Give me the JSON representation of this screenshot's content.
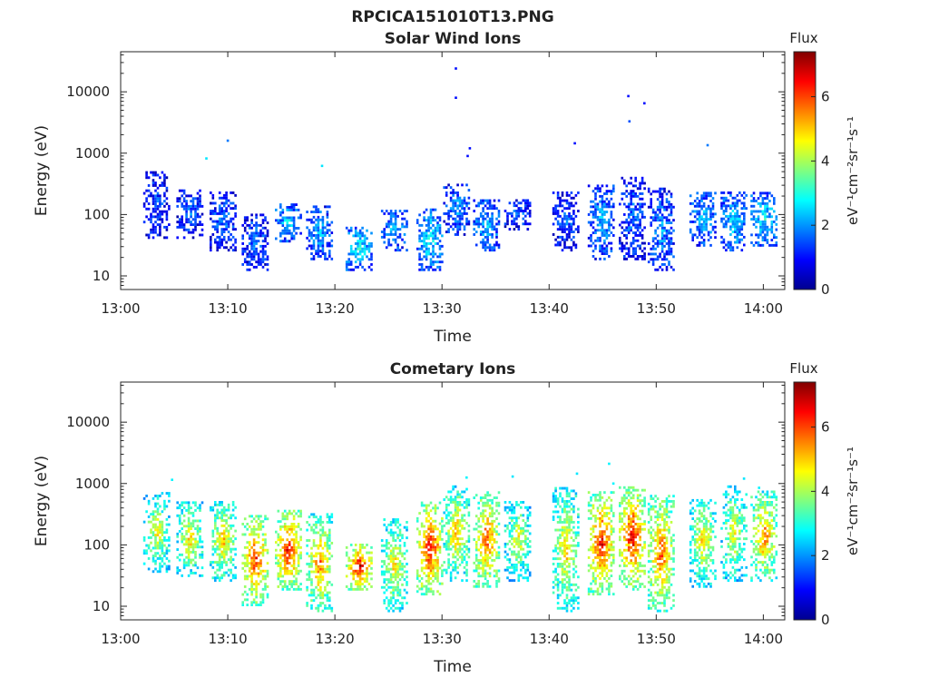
{
  "figure_title": "RPCICA151010T13.PNG",
  "colors": {
    "axis": "#262626",
    "background": "#ffffff",
    "colormap": "jet"
  },
  "chart_data": [
    {
      "type": "heatmap",
      "title": "Solar Wind Ions",
      "xlabel": "Time",
      "ylabel": "Energy (eV)",
      "x_ticks": [
        "13:00",
        "13:10",
        "13:20",
        "13:30",
        "13:40",
        "13:50",
        "14:00"
      ],
      "x_tick_minutes": [
        0,
        10,
        20,
        30,
        40,
        50,
        60
      ],
      "xlim_minutes": [
        0,
        62
      ],
      "y_ticks": [
        "10",
        "100",
        "1000",
        "10000"
      ],
      "y_tick_values": [
        10,
        100,
        1000,
        10000
      ],
      "ylim": [
        6,
        45000
      ],
      "y_scale": "log",
      "colorbar": {
        "title": "Flux",
        "unit": "eV⁻¹cm⁻²sr⁻¹s⁻¹",
        "ticks": [
          "0",
          "2",
          "4",
          "6"
        ],
        "tick_values": [
          0,
          2,
          4,
          6
        ],
        "range": [
          0,
          7.4
        ]
      },
      "clusters": [
        {
          "t": 3.3,
          "emin": 40,
          "emax": 500,
          "flux": 1.4
        },
        {
          "t": 6.4,
          "emin": 40,
          "emax": 250,
          "flux": 1.5
        },
        {
          "t": 9.5,
          "emin": 25,
          "emax": 220,
          "flux": 1.7
        },
        {
          "t": 12.5,
          "emin": 12,
          "emax": 100,
          "flux": 1.6
        },
        {
          "t": 15.6,
          "emin": 35,
          "emax": 150,
          "flux": 2.4
        },
        {
          "t": 18.5,
          "emin": 18,
          "emax": 130,
          "flux": 2.1
        },
        {
          "t": 22.2,
          "emin": 12,
          "emax": 60,
          "flux": 2.6
        },
        {
          "t": 25.5,
          "emin": 25,
          "emax": 120,
          "flux": 2.1
        },
        {
          "t": 28.8,
          "emin": 12,
          "emax": 120,
          "flux": 2.6
        },
        {
          "t": 31.3,
          "emin": 45,
          "emax": 300,
          "flux": 1.9
        },
        {
          "t": 34.1,
          "emin": 25,
          "emax": 170,
          "flux": 2.2
        },
        {
          "t": 37.0,
          "emin": 55,
          "emax": 170,
          "flux": 1.6
        },
        {
          "t": 41.5,
          "emin": 25,
          "emax": 220,
          "flux": 1.5
        },
        {
          "t": 44.8,
          "emin": 18,
          "emax": 300,
          "flux": 2.1
        },
        {
          "t": 47.7,
          "emin": 18,
          "emax": 400,
          "flux": 1.6
        },
        {
          "t": 50.4,
          "emin": 12,
          "emax": 250,
          "flux": 1.9
        },
        {
          "t": 54.3,
          "emin": 30,
          "emax": 220,
          "flux": 2.2
        },
        {
          "t": 57.2,
          "emin": 25,
          "emax": 220,
          "flux": 2.5
        },
        {
          "t": 60.0,
          "emin": 30,
          "emax": 220,
          "flux": 2.6
        }
      ],
      "scatter_points": [
        {
          "t": 31.3,
          "e": 24000,
          "flux": 1.0
        },
        {
          "t": 31.3,
          "e": 8000,
          "flux": 1.0
        },
        {
          "t": 47.4,
          "e": 8500,
          "flux": 1.0
        },
        {
          "t": 48.9,
          "e": 6500,
          "flux": 1.0
        },
        {
          "t": 47.5,
          "e": 3300,
          "flux": 1.5
        },
        {
          "t": 10.0,
          "e": 1600,
          "flux": 1.8
        },
        {
          "t": 32.6,
          "e": 1200,
          "flux": 1.0
        },
        {
          "t": 42.4,
          "e": 1450,
          "flux": 1.0
        },
        {
          "t": 54.8,
          "e": 1350,
          "flux": 1.8
        },
        {
          "t": 8.0,
          "e": 820,
          "flux": 2.6
        },
        {
          "t": 18.8,
          "e": 620,
          "flux": 2.6
        },
        {
          "t": 32.4,
          "e": 900,
          "flux": 1.0
        }
      ]
    },
    {
      "type": "heatmap",
      "title": "Cometary Ions",
      "xlabel": "Time",
      "ylabel": "Energy (eV)",
      "x_ticks": [
        "13:00",
        "13:10",
        "13:20",
        "13:30",
        "13:40",
        "13:50",
        "14:00"
      ],
      "x_tick_minutes": [
        0,
        10,
        20,
        30,
        40,
        50,
        60
      ],
      "xlim_minutes": [
        0,
        62
      ],
      "y_ticks": [
        "10",
        "100",
        "1000",
        "10000"
      ],
      "y_tick_values": [
        10,
        100,
        1000,
        10000
      ],
      "ylim": [
        6,
        45000
      ],
      "y_scale": "log",
      "colorbar": {
        "title": "Flux",
        "unit": "eV⁻¹cm⁻²sr⁻¹s⁻¹",
        "ticks": [
          "0",
          "2",
          "4",
          "6"
        ],
        "tick_values": [
          0,
          2,
          4,
          6
        ],
        "range": [
          0,
          7.4
        ]
      },
      "clusters": [
        {
          "t": 3.3,
          "emin": 35,
          "emax": 700,
          "flux": 4.3
        },
        {
          "t": 6.4,
          "emin": 30,
          "emax": 500,
          "flux": 4.6
        },
        {
          "t": 9.5,
          "emin": 25,
          "emax": 500,
          "flux": 4.8
        },
        {
          "t": 12.5,
          "emin": 10,
          "emax": 300,
          "flux": 5.9
        },
        {
          "t": 15.6,
          "emin": 18,
          "emax": 350,
          "flux": 6.1
        },
        {
          "t": 18.5,
          "emin": 8,
          "emax": 300,
          "flux": 5.3
        },
        {
          "t": 22.2,
          "emin": 18,
          "emax": 100,
          "flux": 6.3
        },
        {
          "t": 25.5,
          "emin": 8,
          "emax": 250,
          "flux": 4.6
        },
        {
          "t": 28.8,
          "emin": 15,
          "emax": 500,
          "flux": 6.2
        },
        {
          "t": 31.3,
          "emin": 25,
          "emax": 900,
          "flux": 4.8
        },
        {
          "t": 34.1,
          "emin": 20,
          "emax": 700,
          "flux": 5.6
        },
        {
          "t": 37.0,
          "emin": 25,
          "emax": 500,
          "flux": 4.3
        },
        {
          "t": 41.5,
          "emin": 8,
          "emax": 800,
          "flux": 4.7
        },
        {
          "t": 44.8,
          "emin": 15,
          "emax": 700,
          "flux": 6.1
        },
        {
          "t": 47.7,
          "emin": 18,
          "emax": 900,
          "flux": 6.2
        },
        {
          "t": 50.4,
          "emin": 8,
          "emax": 600,
          "flux": 5.6
        },
        {
          "t": 54.3,
          "emin": 20,
          "emax": 600,
          "flux": 4.6
        },
        {
          "t": 57.2,
          "emin": 25,
          "emax": 900,
          "flux": 4.3
        },
        {
          "t": 60.0,
          "emin": 25,
          "emax": 700,
          "flux": 5.3
        }
      ],
      "scatter_points": [
        {
          "t": 4.8,
          "e": 1150,
          "flux": 2.7
        },
        {
          "t": 45.6,
          "e": 2100,
          "flux": 2.7
        },
        {
          "t": 36.6,
          "e": 1300,
          "flux": 2.6
        },
        {
          "t": 42.6,
          "e": 1450,
          "flux": 2.6
        },
        {
          "t": 32.3,
          "e": 1250,
          "flux": 2.7
        },
        {
          "t": 58.2,
          "e": 1200,
          "flux": 2.6
        },
        {
          "t": 46.0,
          "e": 1000,
          "flux": 2.7
        },
        {
          "t": 59.6,
          "e": 850,
          "flux": 2.7
        }
      ]
    }
  ]
}
